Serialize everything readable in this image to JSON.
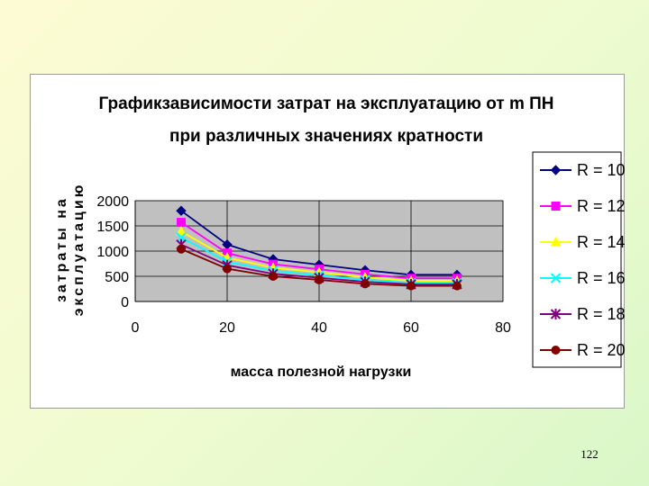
{
  "page_number": "122",
  "chart_data": {
    "type": "line",
    "title_lines": [
      "Графикзависимости затрат на эксплуатацию от m ПН",
      "при различных значениях кратности"
    ],
    "xlabel": "масса полезной нагрузки",
    "ylabel_lines": [
      "затраты на",
      "эксплуатацию"
    ],
    "x": [
      10,
      20,
      30,
      40,
      50,
      60,
      70
    ],
    "xlim": [
      0,
      80
    ],
    "ylim": [
      0,
      2000
    ],
    "x_ticks": [
      "0",
      "20",
      "40",
      "60",
      "80"
    ],
    "y_ticks": [
      "0",
      "500",
      "1000",
      "1500",
      "2000"
    ],
    "grid": true,
    "plot_background": "#c0c0c0",
    "legend_position": "right",
    "series": [
      {
        "name": "R =  10",
        "color": "#000080",
        "marker": "diamond",
        "values": [
          1800,
          1130,
          840,
          730,
          620,
          530,
          530
        ]
      },
      {
        "name": "R =  12",
        "color": "#ff00ff",
        "marker": "square",
        "values": [
          1570,
          960,
          740,
          640,
          540,
          460,
          460
        ]
      },
      {
        "name": "R =  14",
        "color": "#ffff00",
        "marker": "triangle",
        "values": [
          1390,
          870,
          670,
          580,
          480,
          410,
          410
        ]
      },
      {
        "name": "R =  16",
        "color": "#00ffff",
        "marker": "x",
        "values": [
          1270,
          790,
          610,
          520,
          430,
          370,
          370
        ]
      },
      {
        "name": "R =  18",
        "color": "#800080",
        "marker": "star",
        "values": [
          1130,
          720,
          550,
          470,
          390,
          340,
          340
        ]
      },
      {
        "name": "R =  20",
        "color": "#800000",
        "marker": "circle",
        "values": [
          1040,
          650,
          500,
          430,
          350,
          310,
          310
        ]
      }
    ]
  }
}
